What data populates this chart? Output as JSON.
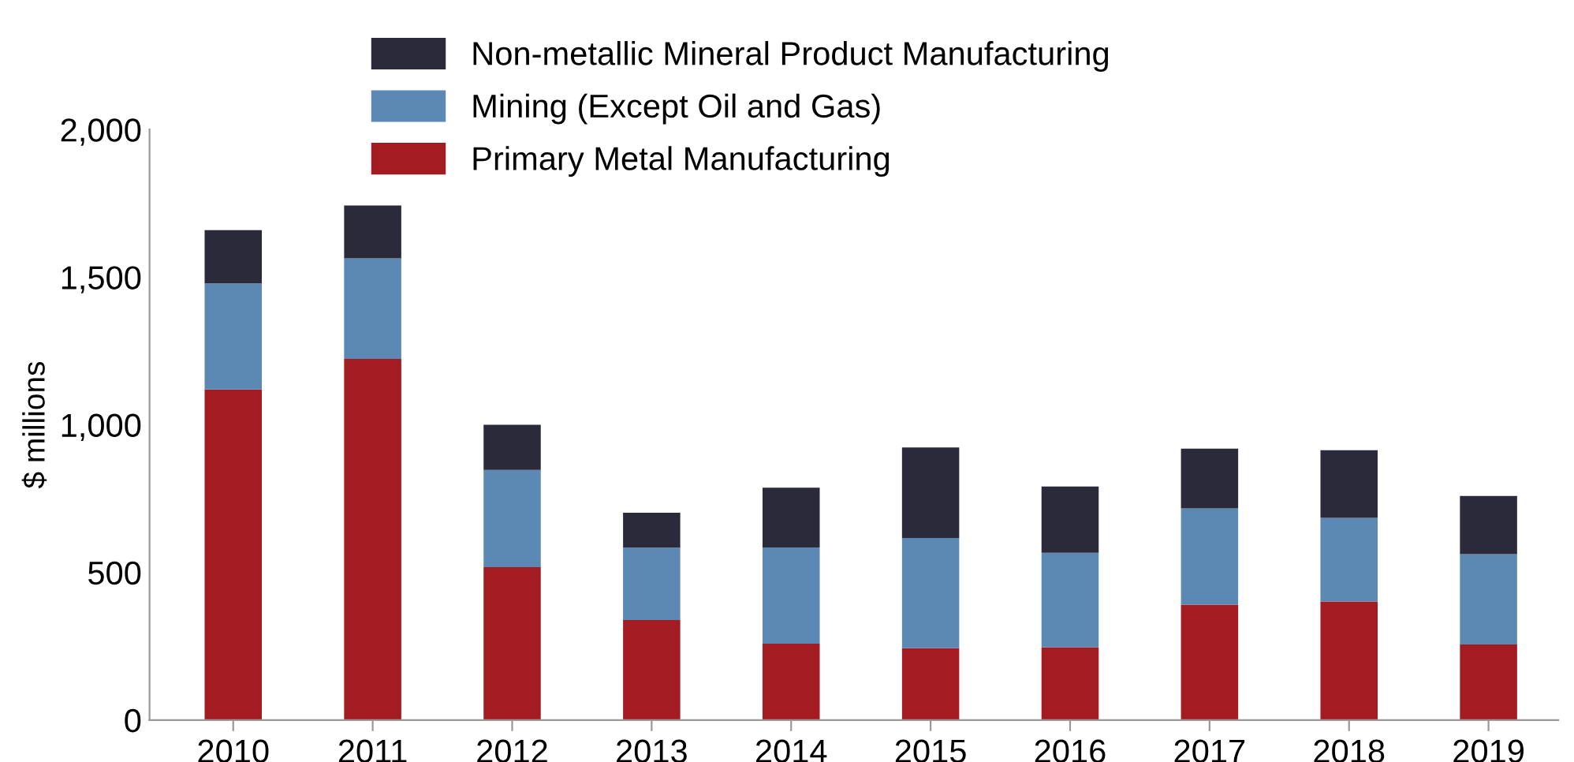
{
  "chart_data": {
    "type": "bar",
    "stacked": true,
    "ylabel": "$ millions",
    "categories": [
      "2010",
      "2011",
      "2012",
      "2013",
      "2014",
      "2015",
      "2016",
      "2017",
      "2018",
      "2019"
    ],
    "series": [
      {
        "name": "Primary Metal Manufacturing",
        "color": "#a31c22",
        "values": [
          1120,
          1223,
          518,
          339,
          259,
          244,
          247,
          391,
          402,
          256
        ]
      },
      {
        "name": "Mining (Except Oil and Gas)",
        "color": "#5b89b4",
        "values": [
          359,
          341,
          329,
          245,
          326,
          373,
          320,
          326,
          283,
          306
        ]
      },
      {
        "name": "Non-metallic Mineral Product Manufacturing",
        "color": "#2b2a3a",
        "values": [
          180,
          179,
          153,
          118,
          202,
          306,
          224,
          202,
          229,
          197
        ]
      }
    ],
    "ylim": [
      0,
      2000
    ],
    "yticks": [
      0,
      500,
      {
        "value": 1000,
        "label": "1,000"
      },
      {
        "value": 1500,
        "label": "1,500"
      },
      {
        "value": 2000,
        "label": "2,000"
      }
    ],
    "grid": false,
    "legend": "top"
  }
}
